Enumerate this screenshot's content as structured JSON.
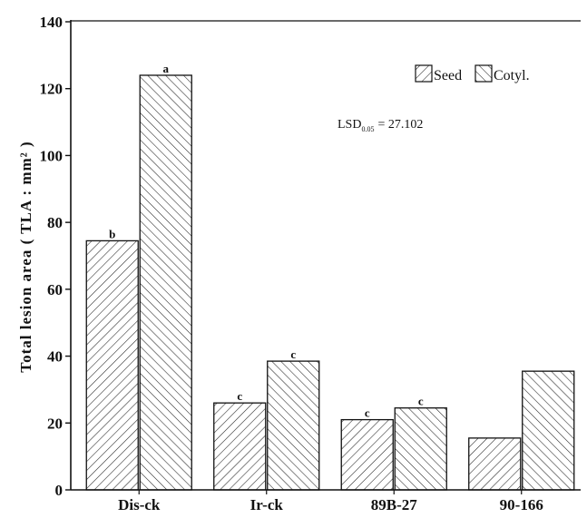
{
  "chart_data": {
    "type": "bar",
    "title": "",
    "ylabel": "Total lesion area ( TLA : mm² )",
    "xlabel": "",
    "ylim": [
      0,
      140
    ],
    "yticks": [
      0,
      20,
      40,
      60,
      80,
      100,
      120,
      140
    ],
    "categories": [
      "Dis-ck",
      "Ir-ck",
      "89B-27",
      "90-166"
    ],
    "series": [
      {
        "name": "Seed",
        "values": [
          74.5,
          26,
          21,
          15.5
        ],
        "labels": [
          "b",
          "c",
          "c",
          ""
        ]
      },
      {
        "name": "Cotyl.",
        "values": [
          124,
          38.5,
          24.5,
          35.5
        ],
        "labels": [
          "a",
          "c",
          "c",
          ""
        ]
      }
    ],
    "legend_position": "top-right",
    "annotation": {
      "prefix": "LSD",
      "subscript": "0.05",
      "value": "= 27.102"
    }
  },
  "colors": {
    "axis": "#111111",
    "hatch": "#222222",
    "background": "#ffffff"
  }
}
